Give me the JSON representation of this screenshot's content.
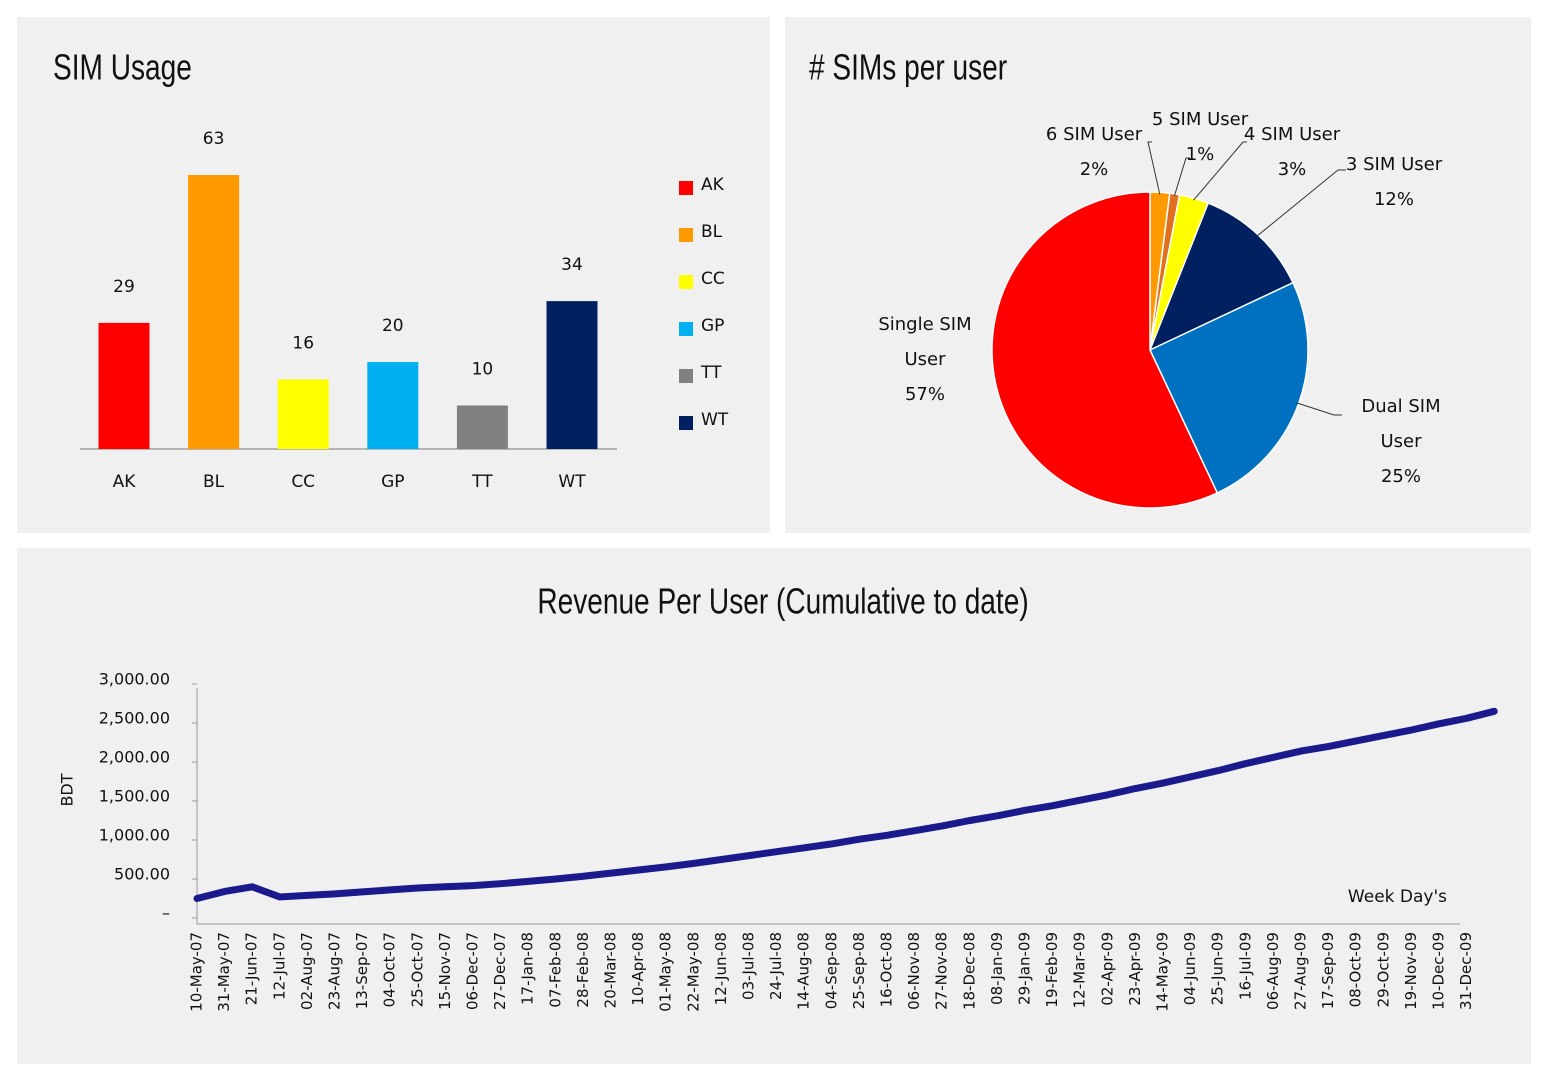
{
  "chart_data": [
    {
      "type": "bar",
      "title": "SIM Usage",
      "categories": [
        "AK",
        "BL",
        "CC",
        "GP",
        "TT",
        "WT"
      ],
      "values": [
        29,
        63,
        16,
        20,
        10,
        34
      ],
      "colors": [
        "#ff0000",
        "#ff9900",
        "#ffff00",
        "#00b0f0",
        "#808080",
        "#002060"
      ],
      "legend": "right"
    },
    {
      "type": "pie",
      "title": "# SIMs per user",
      "labels": [
        "6 SIM User",
        "5 SIM User",
        "4 SIM User",
        "3 SIM User",
        "Dual SIM User",
        "Single SIM User"
      ],
      "values": [
        2,
        1,
        3,
        12,
        25,
        57
      ],
      "value_labels": [
        "2%",
        "1%",
        "3%",
        "12%",
        "25%",
        "57%"
      ],
      "colors": [
        "#ff9900",
        "#e0701f",
        "#ffff00",
        "#002060",
        "#0070c0",
        "#ff0000"
      ]
    },
    {
      "type": "line",
      "title": "Revenue Per User (Cumulative to date)",
      "y_label": "BDT",
      "annotation": "Week Day's",
      "color": "#1a1a8c",
      "categories": [
        "10-May-07",
        "31-May-07",
        "21-Jun-07",
        "12-Jul-07",
        "02-Aug-07",
        "23-Aug-07",
        "13-Sep-07",
        "04-Oct-07",
        "25-Oct-07",
        "15-Nov-07",
        "06-Dec-07",
        "27-Dec-07",
        "17-Jan-08",
        "07-Feb-08",
        "28-Feb-08",
        "20-Mar-08",
        "10-Apr-08",
        "01-May-08",
        "22-May-08",
        "12-Jun-08",
        "03-Jul-08",
        "24-Jul-08",
        "14-Aug-08",
        "04-Sep-08",
        "25-Sep-08",
        "16-Oct-08",
        "06-Nov-08",
        "27-Nov-08",
        "18-Dec-08",
        "08-Jan-09",
        "29-Jan-09",
        "19-Feb-09",
        "12-Mar-09",
        "02-Apr-09",
        "23-Apr-09",
        "14-May-09",
        "04-Jun-09",
        "25-Jun-09",
        "16-Jul-09",
        "06-Aug-09",
        "27-Aug-09",
        "17-Sep-09",
        "08-Oct-09",
        "29-Oct-09",
        "19-Nov-09",
        "10-Dec-09",
        "31-Dec-09",
        null
      ],
      "values": [
        250,
        340,
        400,
        270,
        290,
        310,
        335,
        360,
        385,
        400,
        415,
        440,
        470,
        500,
        535,
        575,
        615,
        655,
        700,
        750,
        800,
        850,
        900,
        950,
        1010,
        1060,
        1120,
        1180,
        1250,
        1310,
        1380,
        1440,
        1510,
        1580,
        1660,
        1730,
        1810,
        1890,
        1980,
        2060,
        2140,
        2200,
        2270,
        2340,
        2410,
        2490,
        2560,
        2650
      ],
      "ylim": [
        0,
        3000
      ],
      "yticks": [
        {
          "value": 0,
          "label": "–"
        },
        {
          "value": 500,
          "label": "500.00"
        },
        {
          "value": 1000,
          "label": "1,000.00"
        },
        {
          "value": 1500,
          "label": "1,500.00"
        },
        {
          "value": 2000,
          "label": "2,000.00"
        },
        {
          "value": 2500,
          "label": "2,500.00"
        },
        {
          "value": 3000,
          "label": "3,000.00"
        }
      ],
      "grid": false
    }
  ]
}
